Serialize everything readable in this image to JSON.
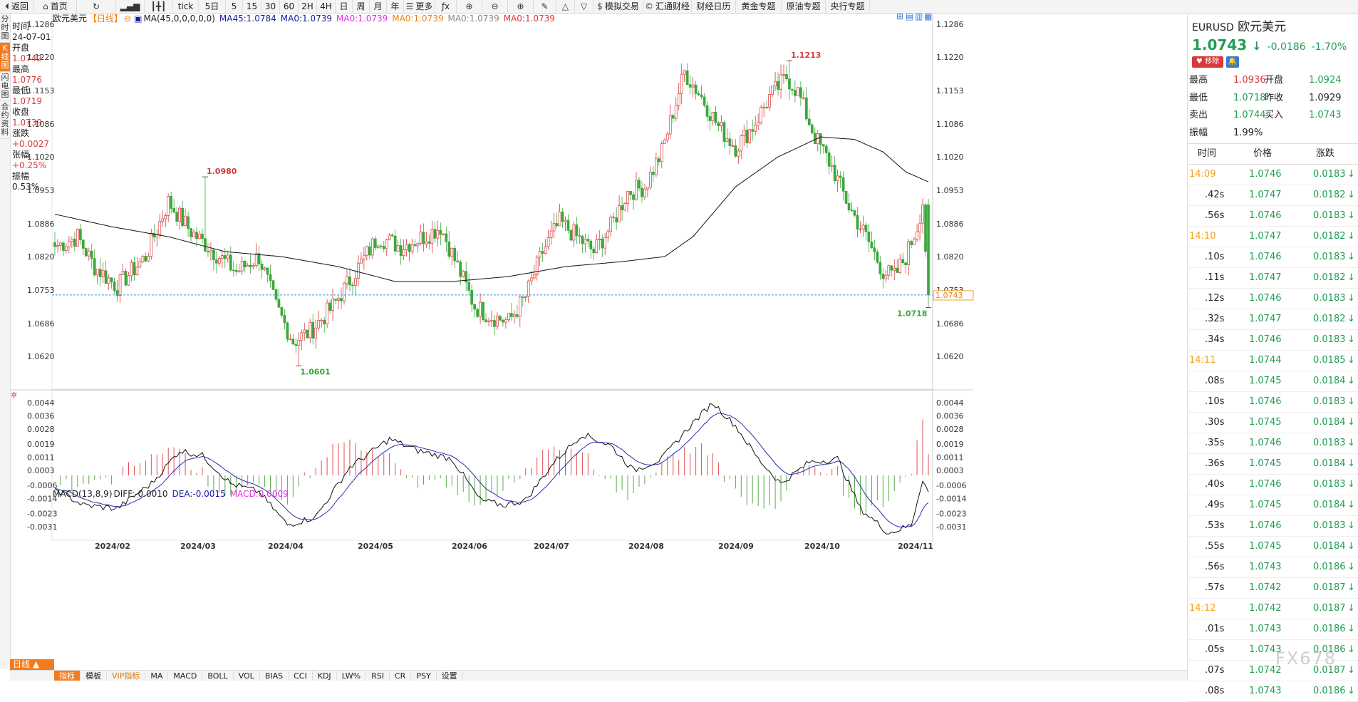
{
  "toolbar": {
    "items": [
      {
        "icon": "back-arrow-icon",
        "label": "返回"
      },
      {
        "icon": "home-icon",
        "label": "首页"
      },
      {
        "icon": "refresh-icon",
        "label": ""
      },
      {
        "icon": "bar-chart-icon",
        "label": ""
      },
      {
        "icon": "candlestick-icon",
        "label": ""
      },
      {
        "icon": "",
        "label": "tick"
      },
      {
        "icon": "",
        "label": "5日"
      },
      {
        "icon": "",
        "label": "5"
      },
      {
        "icon": "",
        "label": "15"
      },
      {
        "icon": "",
        "label": "30"
      },
      {
        "icon": "",
        "label": "60"
      },
      {
        "icon": "",
        "label": "2H"
      },
      {
        "icon": "",
        "label": "4H"
      },
      {
        "icon": "",
        "label": "日"
      },
      {
        "icon": "",
        "label": "周"
      },
      {
        "icon": "",
        "label": "月"
      },
      {
        "icon": "",
        "label": "年"
      },
      {
        "icon": "menu-icon",
        "label": "更多"
      },
      {
        "icon": "function-icon",
        "label": ""
      },
      {
        "icon": "zoom-in-icon",
        "label": ""
      },
      {
        "icon": "zoom-out-icon",
        "label": ""
      },
      {
        "icon": "zoom-in-icon",
        "label": ""
      },
      {
        "icon": "pen-icon",
        "label": ""
      },
      {
        "icon": "triangle-up-icon",
        "label": ""
      },
      {
        "icon": "triangle-down-icon",
        "label": ""
      },
      {
        "icon": "dollar-icon",
        "label": "模拟交易"
      },
      {
        "icon": "copyright-icon",
        "label": "汇通财经"
      },
      {
        "icon": "",
        "label": "财经日历"
      },
      {
        "icon": "",
        "label": "黄金专题"
      },
      {
        "icon": "",
        "label": "原油专题"
      },
      {
        "icon": "",
        "label": "央行专题"
      }
    ]
  },
  "left_tabs": [
    "分时图",
    "K线图",
    "闪电图",
    "合约资料"
  ],
  "info_panel": [
    {
      "label": "时间",
      "value": "24-07-01",
      "color": "plain"
    },
    {
      "label": "开盘",
      "value": "1.0742",
      "color": "red"
    },
    {
      "label": "最高",
      "value": "1.0776",
      "color": "red"
    },
    {
      "label": "最低",
      "value": "1.0719",
      "color": "red"
    },
    {
      "label": "收盘",
      "value": "1.0739",
      "color": "red"
    },
    {
      "label": "涨跌",
      "value": "+0.0027",
      "color": "red"
    },
    {
      "label": "张幅",
      "value": "+0.25%",
      "color": "red"
    },
    {
      "label": "振幅",
      "value": "0.53%",
      "color": "plain"
    }
  ],
  "legend": {
    "symbol": "欧元美元",
    "period": "【日线】",
    "ma_label": "MA(45,0,0,0,0,0)",
    "ma45": "MA45:1.0784",
    "ma0": [
      "MA0:1.0739",
      "MA0:1.0739",
      "MA0:1.0739",
      "MA0:1.0739",
      "MA0:1.0739"
    ],
    "ma0_colors": [
      "#1a1aa0",
      "#e030e0",
      "#f08010",
      "#888888",
      "#d9393a"
    ]
  },
  "macd_legend": {
    "title": "MACD(13,8,9)",
    "diff": "DIFF:-0.0010",
    "dea": "DEA:-0.0015",
    "macd": "MACD:0.0009"
  },
  "chart_data": {
    "type": "candlestick",
    "ylim": [
      1.056,
      1.13
    ],
    "yticks": [
      "1.1286",
      "1.1220",
      "1.1153",
      "1.1086",
      "1.1020",
      "1.0953",
      "1.0886",
      "1.0820",
      "1.0753",
      "1.0686",
      "1.0620"
    ],
    "xlabels": [
      "2024/02",
      "2024/03",
      "2024/04",
      "2024/05",
      "2024/06",
      "2024/07",
      "2024/08",
      "2024/09",
      "2024/10",
      "2024/11"
    ],
    "annotations": [
      {
        "text": "1.0980",
        "value": 1.098
      },
      {
        "text": "1.0601",
        "value": 1.0601
      },
      {
        "text": "1.1213",
        "value": 1.1213
      },
      {
        "text": "1.0718",
        "value": 1.0718
      }
    ],
    "current_price": "1.0743",
    "anchors": [
      {
        "i": 0,
        "p": 1.084
      },
      {
        "i": 8,
        "p": 1.086
      },
      {
        "i": 14,
        "p": 1.08
      },
      {
        "i": 22,
        "p": 1.076
      },
      {
        "i": 32,
        "p": 1.082
      },
      {
        "i": 40,
        "p": 1.093
      },
      {
        "i": 48,
        "p": 1.087
      },
      {
        "i": 56,
        "p": 1.083
      },
      {
        "i": 64,
        "p": 1.079
      },
      {
        "i": 72,
        "p": 1.082
      },
      {
        "i": 78,
        "p": 1.072
      },
      {
        "i": 84,
        "p": 1.065
      },
      {
        "i": 90,
        "p": 1.067
      },
      {
        "i": 98,
        "p": 1.072
      },
      {
        "i": 106,
        "p": 1.079
      },
      {
        "i": 114,
        "p": 1.086
      },
      {
        "i": 122,
        "p": 1.084
      },
      {
        "i": 130,
        "p": 1.086
      },
      {
        "i": 136,
        "p": 1.088
      },
      {
        "i": 142,
        "p": 1.08
      },
      {
        "i": 148,
        "p": 1.072
      },
      {
        "i": 154,
        "p": 1.07
      },
      {
        "i": 160,
        "p": 1.069
      },
      {
        "i": 166,
        "p": 1.074
      },
      {
        "i": 172,
        "p": 1.083
      },
      {
        "i": 178,
        "p": 1.089
      },
      {
        "i": 184,
        "p": 1.086
      },
      {
        "i": 190,
        "p": 1.083
      },
      {
        "i": 196,
        "p": 1.088
      },
      {
        "i": 202,
        "p": 1.095
      },
      {
        "i": 208,
        "p": 1.096
      },
      {
        "i": 214,
        "p": 1.103
      },
      {
        "i": 222,
        "p": 1.119
      },
      {
        "i": 228,
        "p": 1.114
      },
      {
        "i": 234,
        "p": 1.108
      },
      {
        "i": 240,
        "p": 1.104
      },
      {
        "i": 246,
        "p": 1.108
      },
      {
        "i": 252,
        "p": 1.114
      },
      {
        "i": 258,
        "p": 1.118
      },
      {
        "i": 262,
        "p": 1.115
      },
      {
        "i": 268,
        "p": 1.106
      },
      {
        "i": 274,
        "p": 1.1
      },
      {
        "i": 280,
        "p": 1.092
      },
      {
        "i": 286,
        "p": 1.086
      },
      {
        "i": 292,
        "p": 1.079
      },
      {
        "i": 296,
        "p": 1.078
      },
      {
        "i": 300,
        "p": 1.082
      },
      {
        "i": 304,
        "p": 1.088
      },
      {
        "i": 306,
        "p": 1.093
      },
      {
        "i": 308,
        "p": 1.0743
      }
    ],
    "ma45_anchors": [
      {
        "i": 0,
        "p": 1.0905
      },
      {
        "i": 20,
        "p": 1.088
      },
      {
        "i": 40,
        "p": 1.086
      },
      {
        "i": 60,
        "p": 1.083
      },
      {
        "i": 80,
        "p": 1.082
      },
      {
        "i": 100,
        "p": 1.08
      },
      {
        "i": 120,
        "p": 1.077
      },
      {
        "i": 140,
        "p": 1.077
      },
      {
        "i": 160,
        "p": 1.078
      },
      {
        "i": 180,
        "p": 1.08
      },
      {
        "i": 200,
        "p": 1.081
      },
      {
        "i": 215,
        "p": 1.082
      },
      {
        "i": 225,
        "p": 1.086
      },
      {
        "i": 240,
        "p": 1.096
      },
      {
        "i": 255,
        "p": 1.102
      },
      {
        "i": 270,
        "p": 1.106
      },
      {
        "i": 282,
        "p": 1.1055
      },
      {
        "i": 292,
        "p": 1.103
      },
      {
        "i": 300,
        "p": 1.099
      },
      {
        "i": 308,
        "p": 1.097
      }
    ],
    "macd": {
      "ylim": [
        -0.004,
        0.0046
      ],
      "yticks": [
        "0.0044",
        "0.0036",
        "0.0028",
        "0.0019",
        "0.0011",
        "0.0003",
        "-0.0006",
        "-0.0014",
        "-0.0023",
        "-0.0031"
      ],
      "diff_anchors": [
        {
          "i": 0,
          "v": -0.0008
        },
        {
          "i": 10,
          "v": -0.0018
        },
        {
          "i": 22,
          "v": -0.002
        },
        {
          "i": 34,
          "v": -0.0005
        },
        {
          "i": 44,
          "v": 0.0015
        },
        {
          "i": 52,
          "v": 0.0012
        },
        {
          "i": 62,
          "v": -0.0005
        },
        {
          "i": 72,
          "v": -0.001
        },
        {
          "i": 82,
          "v": -0.003
        },
        {
          "i": 92,
          "v": -0.0025
        },
        {
          "i": 104,
          "v": 0.0005
        },
        {
          "i": 118,
          "v": 0.0022
        },
        {
          "i": 128,
          "v": 0.0015
        },
        {
          "i": 140,
          "v": 0.001
        },
        {
          "i": 150,
          "v": -0.0015
        },
        {
          "i": 158,
          "v": -0.0018
        },
        {
          "i": 166,
          "v": -0.0015
        },
        {
          "i": 176,
          "v": 0.0008
        },
        {
          "i": 186,
          "v": 0.0025
        },
        {
          "i": 196,
          "v": 0.0018
        },
        {
          "i": 204,
          "v": 0.0003
        },
        {
          "i": 214,
          "v": 0.001
        },
        {
          "i": 224,
          "v": 0.003
        },
        {
          "i": 232,
          "v": 0.0044
        },
        {
          "i": 240,
          "v": 0.003
        },
        {
          "i": 248,
          "v": 0.001
        },
        {
          "i": 256,
          "v": -0.0005
        },
        {
          "i": 266,
          "v": 0.0008
        },
        {
          "i": 276,
          "v": 0.001
        },
        {
          "i": 284,
          "v": -0.002
        },
        {
          "i": 294,
          "v": -0.0035
        },
        {
          "i": 302,
          "v": -0.003
        },
        {
          "i": 306,
          "v": -0.0002
        },
        {
          "i": 308,
          "v": -0.001
        }
      ]
    }
  },
  "right_panel": {
    "code": "EURUSD",
    "name": "欧元美元",
    "price": "1.0743",
    "arrow": "↓",
    "change": "-0.0186",
    "change_pct": "-1.70%",
    "remove_label": "移除",
    "quote": [
      {
        "l1": "最高",
        "v1": "1.0936",
        "c1": "red",
        "l2": "开盘",
        "v2": "1.0924",
        "c2": "green"
      },
      {
        "l1": "最低",
        "v1": "1.0718",
        "c1": "green",
        "l2": "昨收",
        "v2": "1.0929",
        "c2": "plain"
      },
      {
        "l1": "卖出",
        "v1": "1.0744",
        "c1": "green",
        "l2": "买入",
        "v2": "1.0743",
        "c2": "green"
      },
      {
        "l1": "振幅",
        "v1": "1.99%",
        "c1": "plain",
        "l2": "",
        "v2": "",
        "c2": "plain"
      }
    ],
    "tick_header": [
      "时间",
      "价格",
      "涨跌"
    ],
    "ticks": [
      {
        "t": "14:09",
        "p": "1.0746",
        "c": "0.0183",
        "hl": true
      },
      {
        "t": ".42s",
        "p": "1.0747",
        "c": "0.0182",
        "hl": false
      },
      {
        "t": ".56s",
        "p": "1.0746",
        "c": "0.0183",
        "hl": false
      },
      {
        "t": "14:10",
        "p": "1.0747",
        "c": "0.0182",
        "hl": true
      },
      {
        "t": ".10s",
        "p": "1.0746",
        "c": "0.0183",
        "hl": false
      },
      {
        "t": ".11s",
        "p": "1.0747",
        "c": "0.0182",
        "hl": false
      },
      {
        "t": ".12s",
        "p": "1.0746",
        "c": "0.0183",
        "hl": false
      },
      {
        "t": ".32s",
        "p": "1.0747",
        "c": "0.0182",
        "hl": false
      },
      {
        "t": ".34s",
        "p": "1.0746",
        "c": "0.0183",
        "hl": false
      },
      {
        "t": "14:11",
        "p": "1.0744",
        "c": "0.0185",
        "hl": true
      },
      {
        "t": ".08s",
        "p": "1.0745",
        "c": "0.0184",
        "hl": false
      },
      {
        "t": ".10s",
        "p": "1.0746",
        "c": "0.0183",
        "hl": false
      },
      {
        "t": ".30s",
        "p": "1.0745",
        "c": "0.0184",
        "hl": false
      },
      {
        "t": ".35s",
        "p": "1.0746",
        "c": "0.0183",
        "hl": false
      },
      {
        "t": ".36s",
        "p": "1.0745",
        "c": "0.0184",
        "hl": false
      },
      {
        "t": ".40s",
        "p": "1.0746",
        "c": "0.0183",
        "hl": false
      },
      {
        "t": ".49s",
        "p": "1.0745",
        "c": "0.0184",
        "hl": false
      },
      {
        "t": ".53s",
        "p": "1.0746",
        "c": "0.0183",
        "hl": false
      },
      {
        "t": ".55s",
        "p": "1.0745",
        "c": "0.0184",
        "hl": false
      },
      {
        "t": ".56s",
        "p": "1.0743",
        "c": "0.0186",
        "hl": false
      },
      {
        "t": ".57s",
        "p": "1.0742",
        "c": "0.0187",
        "hl": false
      },
      {
        "t": "14:12",
        "p": "1.0742",
        "c": "0.0187",
        "hl": true
      },
      {
        "t": ".01s",
        "p": "1.0743",
        "c": "0.0186",
        "hl": false
      },
      {
        "t": ".05s",
        "p": "1.0743",
        "c": "0.0186",
        "hl": false
      },
      {
        "t": ".07s",
        "p": "1.0742",
        "c": "0.0187",
        "hl": false
      },
      {
        "t": ".08s",
        "p": "1.0743",
        "c": "0.0186",
        "hl": false
      }
    ]
  },
  "bottom": {
    "period_tag": "日线 ▲",
    "tabs": [
      "指标",
      "模板",
      "VIP指标",
      "MA",
      "MACD",
      "BOLL",
      "VOL",
      "BIAS",
      "CCI",
      "KDJ",
      "LW%",
      "RSI",
      "CR",
      "PSY",
      "设置"
    ]
  },
  "watermark": "FX678"
}
